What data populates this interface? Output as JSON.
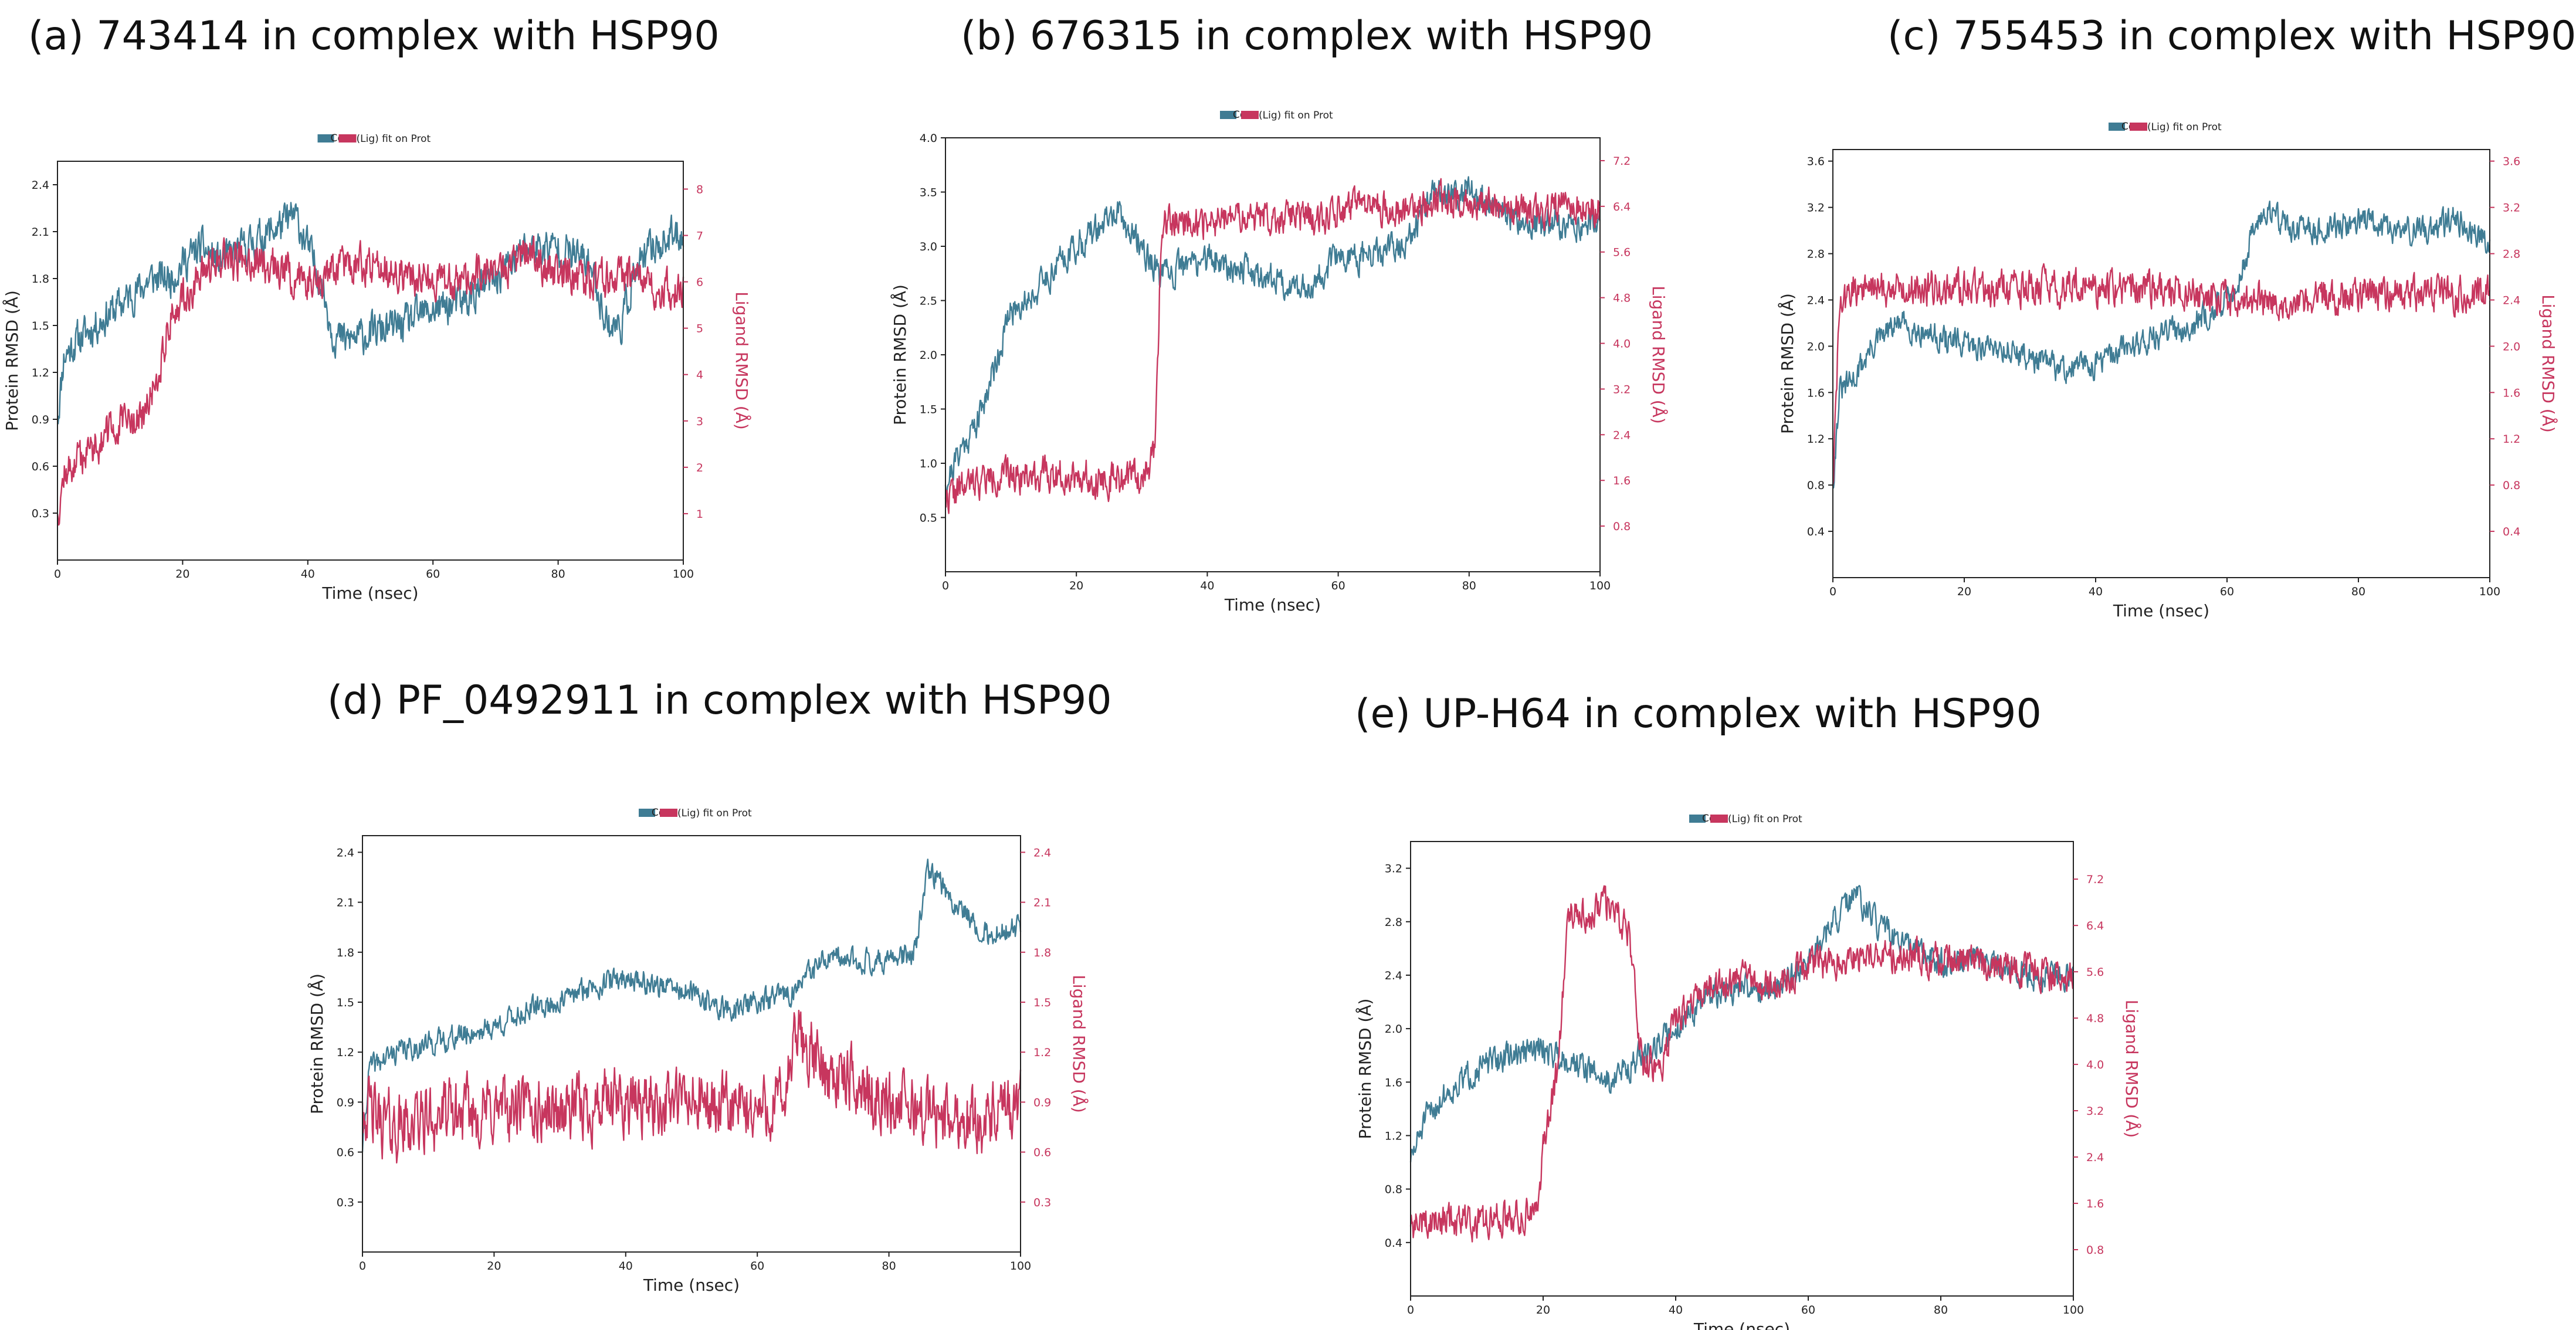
{
  "colors": {
    "protein": "#3f7c94",
    "ligand": "#c7365e",
    "axis": "#222222"
  },
  "chart_data": [
    {
      "id": "a",
      "type": "line",
      "title": "(a) 743414 in complex with HSP90",
      "legend": {
        "protein_symbol": "Cα",
        "label": "(Lig) fit on Prot"
      },
      "xlabel": "Time (nsec)",
      "ylabel_left": "Protein RMSD (Å)",
      "ylabel_right": "Ligand RMSD (Å)",
      "xlim": [
        0,
        100
      ],
      "ylim_left": [
        0.0,
        2.55
      ],
      "ylim_right": [
        0.0,
        8.6
      ],
      "xticks": [
        "0",
        "20",
        "40",
        "60",
        "80",
        "100"
      ],
      "yticks_left": [
        "0.3",
        "0.6",
        "0.9",
        "1.2",
        "1.5",
        "1.8",
        "2.1",
        "2.4"
      ],
      "yticks_right": [
        "1",
        "2",
        "3",
        "4",
        "5",
        "6",
        "7",
        "8"
      ],
      "series": [
        {
          "name": "Protein RMSD",
          "axis": "left",
          "noise": 0.1,
          "seed": 11,
          "x": [
            0,
            1,
            3,
            6,
            9,
            12,
            15,
            18,
            20,
            23,
            26,
            30,
            34,
            38,
            40,
            42,
            44,
            46,
            50,
            55,
            60,
            65,
            70,
            75,
            80,
            85,
            88,
            90,
            92,
            95,
            100
          ],
          "values": [
            0.9,
            1.3,
            1.4,
            1.5,
            1.6,
            1.7,
            1.8,
            1.8,
            1.9,
            2.0,
            1.9,
            2.0,
            2.1,
            2.2,
            2.0,
            1.8,
            1.45,
            1.4,
            1.45,
            1.5,
            1.6,
            1.65,
            1.8,
            2.0,
            2.0,
            1.9,
            1.5,
            1.5,
            1.8,
            2.0,
            2.1
          ]
        },
        {
          "name": "Ligand RMSD",
          "axis": "right",
          "noise": 0.35,
          "seed": 12,
          "x": [
            0,
            1,
            3,
            6,
            10,
            14,
            16,
            18,
            20,
            25,
            30,
            35,
            40,
            45,
            50,
            55,
            60,
            65,
            70,
            75,
            80,
            85,
            90,
            95,
            100
          ],
          "values": [
            1.0,
            1.8,
            2.1,
            2.5,
            2.9,
            3.1,
            4.0,
            5.2,
            5.6,
            6.4,
            6.5,
            6.3,
            6.0,
            6.3,
            6.4,
            6.2,
            6.0,
            6.1,
            6.2,
            6.6,
            6.2,
            6.0,
            6.1,
            5.9,
            5.8
          ]
        }
      ]
    },
    {
      "id": "b",
      "type": "line",
      "title": "(b) 676315 in complex with HSP90",
      "legend": {
        "protein_symbol": "Cα",
        "label": "(Lig) fit on Prot"
      },
      "xlabel": "Time (nsec)",
      "ylabel_left": "Protein RMSD (Å)",
      "ylabel_right": "Ligand RMSD (Å)",
      "xlim": [
        0,
        100
      ],
      "ylim_left": [
        0.0,
        4.0
      ],
      "ylim_right": [
        0.0,
        7.6
      ],
      "xticks": [
        "0",
        "20",
        "40",
        "60",
        "80",
        "100"
      ],
      "yticks_left": [
        "0.5",
        "1.0",
        "1.5",
        "2.0",
        "2.5",
        "3.0",
        "3.5",
        "4.0"
      ],
      "yticks_right": [
        "0.8",
        "1.6",
        "2.4",
        "3.2",
        "4.0",
        "4.8",
        "5.6",
        "6.4",
        "7.2"
      ],
      "series": [
        {
          "name": "Protein RMSD",
          "axis": "left",
          "noise": 0.12,
          "seed": 21,
          "x": [
            0,
            2,
            5,
            8,
            10,
            14,
            18,
            22,
            26,
            30,
            33,
            36,
            40,
            45,
            50,
            55,
            60,
            65,
            70,
            75,
            80,
            85,
            90,
            95,
            100
          ],
          "values": [
            0.8,
            1.1,
            1.4,
            2.0,
            2.4,
            2.6,
            2.9,
            3.1,
            3.3,
            3.0,
            2.7,
            2.8,
            2.9,
            2.8,
            2.7,
            2.6,
            2.9,
            2.9,
            3.0,
            3.5,
            3.5,
            3.3,
            3.2,
            3.2,
            3.2
          ]
        },
        {
          "name": "Ligand RMSD",
          "axis": "right",
          "noise": 0.25,
          "seed": 22,
          "x": [
            0,
            5,
            10,
            15,
            20,
            25,
            30,
            32,
            33,
            35,
            40,
            45,
            50,
            55,
            60,
            65,
            70,
            75,
            80,
            85,
            90,
            95,
            100
          ],
          "values": [
            1.3,
            1.6,
            1.7,
            1.7,
            1.7,
            1.6,
            1.7,
            2.0,
            6.0,
            6.2,
            6.1,
            6.2,
            6.2,
            6.2,
            6.3,
            6.4,
            6.3,
            6.5,
            6.5,
            6.4,
            6.3,
            6.4,
            6.3
          ]
        }
      ]
    },
    {
      "id": "c",
      "type": "line",
      "title": "(c) 755453 in complex with HSP90",
      "legend": {
        "protein_symbol": "Cα",
        "label": "(Lig) fit on Prot"
      },
      "xlabel": "Time (nsec)",
      "ylabel_left": "Protein RMSD (Å)",
      "ylabel_right": "Ligand RMSD (Å)",
      "xlim": [
        0,
        100
      ],
      "ylim_left": [
        0.0,
        3.7
      ],
      "ylim_right": [
        0.0,
        3.7
      ],
      "xticks": [
        "0",
        "20",
        "40",
        "60",
        "80",
        "100"
      ],
      "yticks_left": [
        "0.4",
        "0.8",
        "1.2",
        "1.6",
        "2.0",
        "2.4",
        "2.8",
        "3.2",
        "3.6"
      ],
      "yticks_right": [
        "0.4",
        "0.8",
        "1.2",
        "1.6",
        "2.0",
        "2.4",
        "2.8",
        "3.2",
        "3.6"
      ],
      "series": [
        {
          "name": "Protein RMSD",
          "axis": "left",
          "noise": 0.1,
          "seed": 31,
          "x": [
            0,
            1,
            3,
            6,
            10,
            15,
            20,
            25,
            30,
            35,
            40,
            45,
            50,
            55,
            60,
            62,
            64,
            66,
            70,
            75,
            80,
            85,
            90,
            95,
            100
          ],
          "values": [
            0.8,
            1.6,
            1.7,
            2.0,
            2.2,
            2.1,
            2.0,
            2.0,
            1.9,
            1.8,
            1.85,
            2.0,
            2.1,
            2.2,
            2.4,
            2.6,
            3.0,
            3.2,
            3.0,
            3.0,
            3.1,
            3.0,
            3.0,
            3.1,
            2.9
          ]
        },
        {
          "name": "Ligand RMSD",
          "axis": "right",
          "noise": 0.13,
          "seed": 32,
          "x": [
            0,
            1,
            3,
            10,
            20,
            30,
            40,
            50,
            60,
            70,
            80,
            90,
            100
          ],
          "values": [
            0.8,
            2.3,
            2.5,
            2.5,
            2.5,
            2.5,
            2.5,
            2.5,
            2.4,
            2.4,
            2.45,
            2.45,
            2.45
          ]
        }
      ]
    },
    {
      "id": "d",
      "type": "line",
      "title": "(d) PF_0492911 in complex with HSP90",
      "legend": {
        "protein_symbol": "Cα",
        "label": "(Lig) fit on Prot"
      },
      "xlabel": "Time (nsec)",
      "ylabel_left": "Protein RMSD (Å)",
      "ylabel_right": "Ligand RMSD (Å)",
      "xlim": [
        0,
        100
      ],
      "ylim_left": [
        0.0,
        2.5
      ],
      "ylim_right": [
        0.0,
        2.5
      ],
      "xticks": [
        "0",
        "20",
        "40",
        "60",
        "80",
        "100"
      ],
      "yticks_left": [
        "0.3",
        "0.6",
        "0.9",
        "1.2",
        "1.5",
        "1.8",
        "2.1",
        "2.4"
      ],
      "yticks_right": [
        "0.3",
        "0.6",
        "0.9",
        "1.2",
        "1.5",
        "1.8",
        "2.1",
        "2.4"
      ],
      "series": [
        {
          "name": "Protein RMSD",
          "axis": "left",
          "noise": 0.06,
          "seed": 41,
          "x": [
            0,
            1,
            5,
            10,
            15,
            20,
            25,
            30,
            35,
            40,
            45,
            50,
            55,
            60,
            65,
            70,
            75,
            80,
            84,
            86,
            90,
            95,
            100
          ],
          "values": [
            0.6,
            1.1,
            1.2,
            1.25,
            1.3,
            1.35,
            1.45,
            1.5,
            1.6,
            1.65,
            1.6,
            1.55,
            1.45,
            1.5,
            1.55,
            1.75,
            1.75,
            1.75,
            1.8,
            2.3,
            2.1,
            1.9,
            1.95
          ]
        },
        {
          "name": "Ligand RMSD",
          "axis": "right",
          "noise": 0.17,
          "seed": 42,
          "x": [
            0,
            2,
            5,
            10,
            20,
            30,
            40,
            50,
            55,
            60,
            64,
            66,
            70,
            75,
            80,
            85,
            90,
            95,
            100
          ],
          "values": [
            0.9,
            0.8,
            0.75,
            0.8,
            0.85,
            0.85,
            0.9,
            0.9,
            0.85,
            0.85,
            0.9,
            1.3,
            1.1,
            1.0,
            0.9,
            0.85,
            0.8,
            0.8,
            0.85
          ]
        }
      ]
    },
    {
      "id": "e",
      "type": "line",
      "title": "(e) UP-H64 in complex with HSP90",
      "legend": {
        "protein_symbol": "Cα",
        "label": "(Lig) fit on Prot"
      },
      "xlabel": "Time (nsec)",
      "ylabel_left": "Protein RMSD (Å)",
      "ylabel_right": "Ligand RMSD (Å)",
      "xlim": [
        0,
        100
      ],
      "ylim_left": [
        0.0,
        3.4
      ],
      "ylim_right": [
        0.0,
        7.85
      ],
      "xticks": [
        "0",
        "20",
        "40",
        "60",
        "80",
        "100"
      ],
      "yticks_left": [
        "0.4",
        "0.8",
        "1.2",
        "1.6",
        "2.0",
        "2.4",
        "2.8",
        "3.2"
      ],
      "yticks_right": [
        "0.8",
        "1.6",
        "2.4",
        "3.2",
        "4.0",
        "4.8",
        "5.6",
        "6.4",
        "7.2"
      ],
      "series": [
        {
          "name": "Protein RMSD",
          "axis": "left",
          "noise": 0.09,
          "seed": 51,
          "x": [
            0,
            2,
            5,
            10,
            15,
            20,
            25,
            30,
            35,
            40,
            45,
            50,
            55,
            60,
            64,
            67,
            70,
            75,
            80,
            85,
            90,
            95,
            100
          ],
          "values": [
            1.0,
            1.3,
            1.5,
            1.7,
            1.8,
            1.85,
            1.75,
            1.6,
            1.8,
            2.0,
            2.25,
            2.3,
            2.3,
            2.5,
            2.8,
            3.0,
            2.8,
            2.6,
            2.5,
            2.5,
            2.45,
            2.4,
            2.4
          ]
        },
        {
          "name": "Ligand RMSD",
          "axis": "right",
          "noise": 0.25,
          "seed": 52,
          "x": [
            0,
            5,
            10,
            15,
            19,
            20,
            22,
            24,
            27,
            30,
            33,
            35,
            38,
            40,
            45,
            50,
            55,
            60,
            65,
            70,
            80,
            90,
            100
          ],
          "values": [
            1.2,
            1.3,
            1.3,
            1.4,
            1.5,
            2.5,
            3.8,
            6.7,
            6.6,
            6.8,
            6.3,
            4.0,
            4.0,
            4.8,
            5.3,
            5.5,
            5.4,
            5.7,
            5.8,
            5.9,
            5.8,
            5.7,
            5.5
          ]
        }
      ]
    }
  ]
}
